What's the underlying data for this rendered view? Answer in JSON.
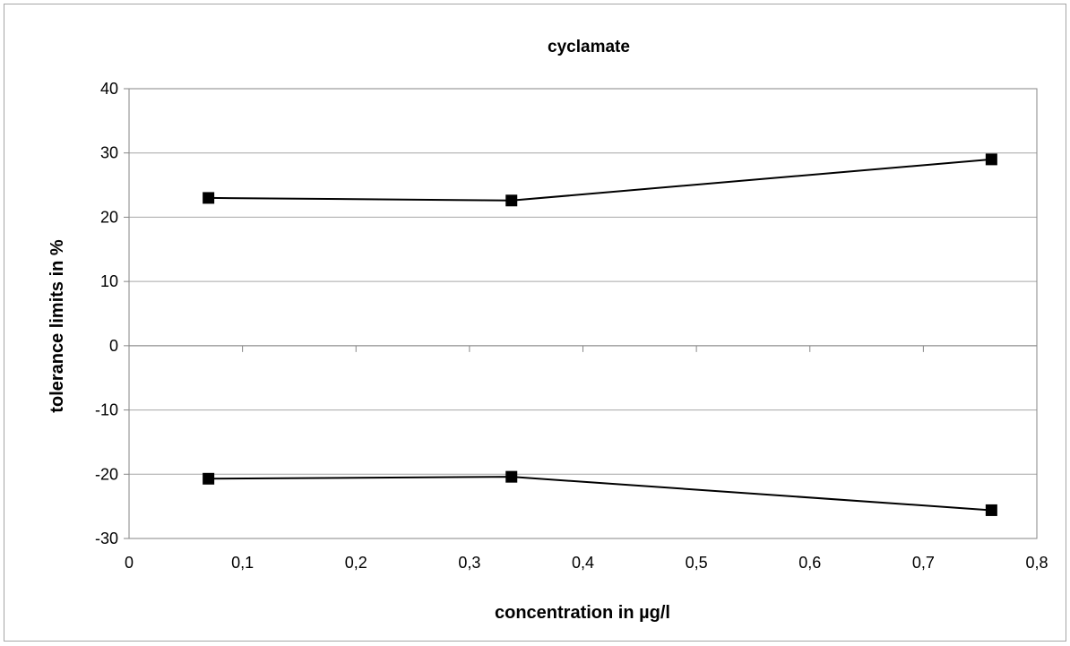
{
  "chart_data": {
    "type": "line",
    "title": "cyclamate",
    "xlabel": "concentration in µg/l",
    "ylabel": "tolerance limits in %",
    "xlim": [
      0,
      0.8
    ],
    "ylim": [
      -30,
      40
    ],
    "x_ticks": [
      0,
      0.1,
      0.2,
      0.3,
      0.4,
      0.5,
      0.6,
      0.7,
      0.8
    ],
    "x_tick_labels": [
      "0",
      "0,1",
      "0,2",
      "0,3",
      "0,4",
      "0,5",
      "0,6",
      "0,7",
      "0,8"
    ],
    "y_ticks": [
      -30,
      -20,
      -10,
      0,
      10,
      20,
      30,
      40
    ],
    "y_tick_labels": [
      "-30",
      "-20",
      "-10",
      "0",
      "10",
      "20",
      "30",
      "40"
    ],
    "grid": "horizontal",
    "legend": "none",
    "marker": "square",
    "series": [
      {
        "x": [
          0.07,
          0.337,
          0.76
        ],
        "values": [
          23.0,
          22.6,
          29.0
        ]
      },
      {
        "x": [
          0.07,
          0.337,
          0.76
        ],
        "values": [
          -20.7,
          -20.4,
          -25.6
        ]
      }
    ],
    "colors": {
      "line": "#000000",
      "marker": "#000000",
      "grid": "#a6a6a6",
      "axis": "#868686",
      "frame": "#a6a6a6"
    }
  }
}
